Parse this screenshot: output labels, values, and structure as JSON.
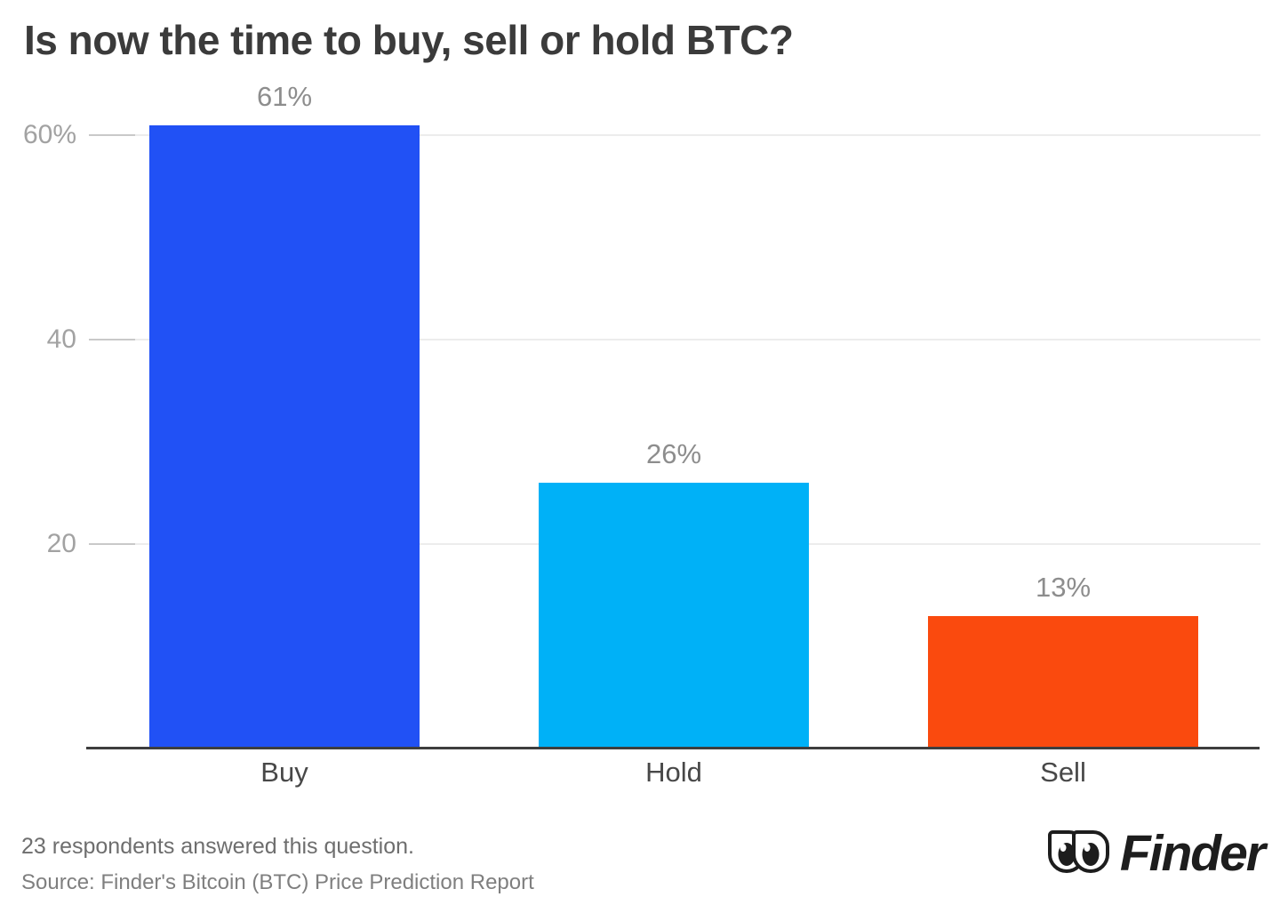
{
  "title": "Is now the time to buy, sell or hold BTC?",
  "chart_data": {
    "type": "bar",
    "title": "Is now the time to buy, sell or hold BTC?",
    "categories": [
      "Buy",
      "Hold",
      "Sell"
    ],
    "values": [
      61,
      26,
      13
    ],
    "value_labels": [
      "61%",
      "26%",
      "13%"
    ],
    "bar_colors": [
      "#2151f5",
      "#00b1f7",
      "#fa4a0e"
    ],
    "xlabel": "",
    "ylabel": "",
    "ylim": [
      0,
      65
    ],
    "yticks": [
      {
        "value": 20,
        "label": "20"
      },
      {
        "value": 40,
        "label": "40"
      },
      {
        "value": 60,
        "label": "60%"
      }
    ],
    "grid": true,
    "legend": false
  },
  "footer": {
    "note": "23 respondents answered this question.",
    "source": "Source: Finder's Bitcoin (BTC) Price Prediction Report"
  },
  "logo": {
    "brand": "Finder"
  },
  "colors": {
    "background": "#ffffff",
    "title_text": "#3b3b3b",
    "gridline": "#ececec",
    "tick_mark": "#c9c9c9",
    "ytick_text": "#a2a2a2",
    "xtick_text": "#484848",
    "value_label_text": "#8d8d8d",
    "axis_line": "#3e3e3e",
    "note_text": "#6e6e6e",
    "source_text": "#7f7f7f",
    "logo_color": "#1d1d1d"
  }
}
